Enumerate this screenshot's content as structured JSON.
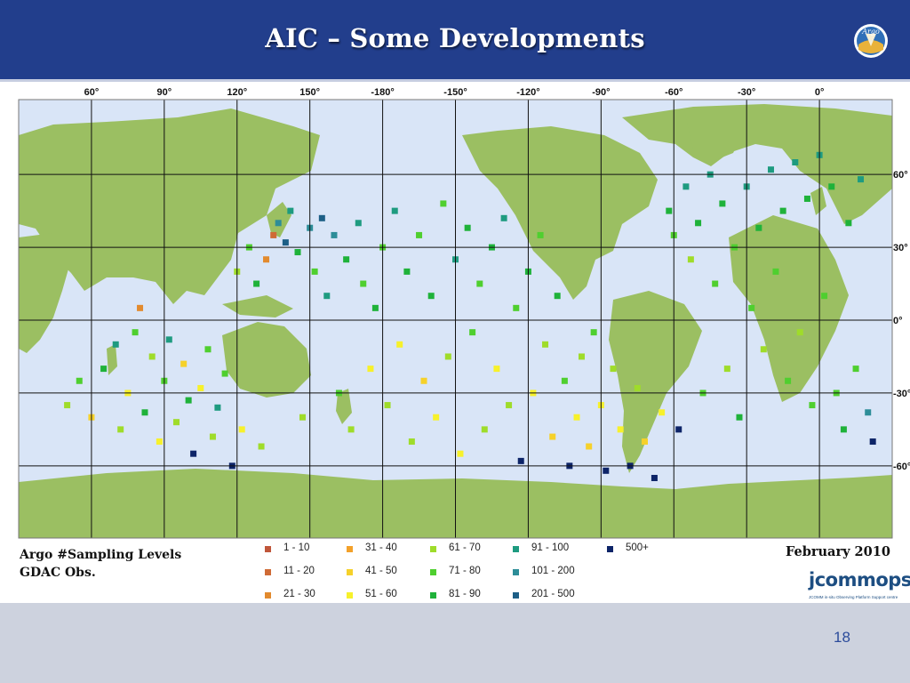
{
  "slide": {
    "title": "AIC – Some Developments",
    "page_number": "18",
    "logo_text": "Argo"
  },
  "map": {
    "lon_labels": [
      {
        "lon": 60,
        "label": "60°"
      },
      {
        "lon": 90,
        "label": "90°"
      },
      {
        "lon": 120,
        "label": "120°"
      },
      {
        "lon": 150,
        "label": "150°"
      },
      {
        "lon": 180,
        "label": "-180°"
      },
      {
        "lon": 210,
        "label": "-150°"
      },
      {
        "lon": 240,
        "label": "-120°"
      },
      {
        "lon": 270,
        "label": "-90°"
      },
      {
        "lon": 300,
        "label": "-60°"
      },
      {
        "lon": 330,
        "label": "-30°"
      },
      {
        "lon": 360,
        "label": "0°"
      }
    ],
    "lat_labels": [
      {
        "lat": 60,
        "label": "60°"
      },
      {
        "lat": 30,
        "label": "30°"
      },
      {
        "lat": 0,
        "label": "0°"
      },
      {
        "lat": -30,
        "label": "-30°"
      },
      {
        "lat": -60,
        "label": "-60°"
      }
    ],
    "colors": {
      "ocean": "#d9e5f7",
      "land": "#9bbf62",
      "grid": "#111111"
    }
  },
  "legend": {
    "title_line1": "Argo #Sampling Levels",
    "title_line2": "GDAC Obs.",
    "date": "February 2010",
    "bins": [
      {
        "label": "1 - 10",
        "color": "#c0563a"
      },
      {
        "label": "11 - 20",
        "color": "#cf6b36"
      },
      {
        "label": "21 - 30",
        "color": "#e28a2e"
      },
      {
        "label": "31 - 40",
        "color": "#f3a12a"
      },
      {
        "label": "41 - 50",
        "color": "#f6d12a"
      },
      {
        "label": "51 - 60",
        "color": "#f7f12b"
      },
      {
        "label": "61 - 70",
        "color": "#9fdc2a"
      },
      {
        "label": "71 - 80",
        "color": "#4fcf2f"
      },
      {
        "label": "81 - 90",
        "color": "#1fb23a"
      },
      {
        "label": "91 - 100",
        "color": "#1e9b80"
      },
      {
        "label": "101 - 200",
        "color": "#2d8d98"
      },
      {
        "label": "201 - 500",
        "color": "#1d5f86"
      },
      {
        "label": "500+",
        "color": "#0d2468"
      }
    ]
  },
  "branding": {
    "jcommops_name": "jcommops",
    "jcommops_sub": "JCOMM in-situ Observing Platform Support centre"
  },
  "chart_data": {
    "type": "scatter",
    "description_of_values": "float positions [lon, lat, bin index]",
    "points": [
      [
        50,
        -35,
        6
      ],
      [
        55,
        -25,
        7
      ],
      [
        60,
        -40,
        4
      ],
      [
        65,
        -20,
        8
      ],
      [
        70,
        -10,
        9
      ],
      [
        72,
        -45,
        6
      ],
      [
        75,
        -30,
        5
      ],
      [
        78,
        -5,
        7
      ],
      [
        80,
        5,
        2
      ],
      [
        82,
        -38,
        8
      ],
      [
        85,
        -15,
        6
      ],
      [
        88,
        -50,
        5
      ],
      [
        90,
        -25,
        7
      ],
      [
        92,
        -8,
        9
      ],
      [
        95,
        -42,
        6
      ],
      [
        98,
        -18,
        4
      ],
      [
        100,
        -33,
        8
      ],
      [
        102,
        -55,
        12
      ],
      [
        105,
        -28,
        5
      ],
      [
        108,
        -12,
        7
      ],
      [
        110,
        -48,
        6
      ],
      [
        112,
        -36,
        9
      ],
      [
        115,
        -22,
        7
      ],
      [
        118,
        -60,
        12
      ],
      [
        120,
        20,
        6
      ],
      [
        122,
        -45,
        5
      ],
      [
        125,
        30,
        7
      ],
      [
        128,
        15,
        8
      ],
      [
        130,
        -52,
        6
      ],
      [
        132,
        25,
        2
      ],
      [
        135,
        35,
        1
      ],
      [
        137,
        40,
        10
      ],
      [
        140,
        32,
        11
      ],
      [
        142,
        45,
        9
      ],
      [
        145,
        28,
        8
      ],
      [
        147,
        -40,
        6
      ],
      [
        150,
        38,
        10
      ],
      [
        152,
        20,
        7
      ],
      [
        155,
        42,
        11
      ],
      [
        157,
        10,
        9
      ],
      [
        160,
        35,
        10
      ],
      [
        162,
        -30,
        7
      ],
      [
        165,
        25,
        8
      ],
      [
        167,
        -45,
        6
      ],
      [
        170,
        40,
        9
      ],
      [
        172,
        15,
        7
      ],
      [
        175,
        -20,
        5
      ],
      [
        177,
        5,
        8
      ],
      [
        180,
        30,
        7
      ],
      [
        182,
        -35,
        6
      ],
      [
        185,
        45,
        9
      ],
      [
        187,
        -10,
        5
      ],
      [
        190,
        20,
        8
      ],
      [
        192,
        -50,
        6
      ],
      [
        195,
        35,
        7
      ],
      [
        197,
        -25,
        4
      ],
      [
        200,
        10,
        8
      ],
      [
        202,
        -40,
        5
      ],
      [
        205,
        48,
        7
      ],
      [
        207,
        -15,
        6
      ],
      [
        210,
        25,
        9
      ],
      [
        212,
        -55,
        5
      ],
      [
        215,
        38,
        8
      ],
      [
        217,
        -5,
        7
      ],
      [
        220,
        15,
        7
      ],
      [
        222,
        -45,
        6
      ],
      [
        225,
        30,
        8
      ],
      [
        227,
        -20,
        5
      ],
      [
        230,
        42,
        9
      ],
      [
        232,
        -35,
        6
      ],
      [
        235,
        5,
        7
      ],
      [
        237,
        -58,
        12
      ],
      [
        240,
        20,
        8
      ],
      [
        242,
        -30,
        5
      ],
      [
        245,
        35,
        7
      ],
      [
        247,
        -10,
        6
      ],
      [
        250,
        -48,
        4
      ],
      [
        252,
        10,
        8
      ],
      [
        255,
        -25,
        7
      ],
      [
        257,
        -60,
        12
      ],
      [
        260,
        -40,
        5
      ],
      [
        262,
        -15,
        6
      ],
      [
        265,
        -52,
        4
      ],
      [
        267,
        -5,
        7
      ],
      [
        270,
        -35,
        5
      ],
      [
        272,
        -62,
        12
      ],
      [
        275,
        -20,
        6
      ],
      [
        278,
        -45,
        5
      ],
      [
        282,
        -60,
        12
      ],
      [
        285,
        -28,
        6
      ],
      [
        288,
        -50,
        4
      ],
      [
        292,
        -65,
        12
      ],
      [
        295,
        -38,
        5
      ],
      [
        298,
        45,
        8
      ],
      [
        300,
        35,
        7
      ],
      [
        302,
        -45,
        12
      ],
      [
        305,
        55,
        9
      ],
      [
        307,
        25,
        6
      ],
      [
        310,
        40,
        8
      ],
      [
        312,
        -30,
        7
      ],
      [
        315,
        60,
        9
      ],
      [
        317,
        15,
        7
      ],
      [
        320,
        48,
        8
      ],
      [
        322,
        -20,
        6
      ],
      [
        325,
        30,
        7
      ],
      [
        327,
        -40,
        8
      ],
      [
        330,
        55,
        9
      ],
      [
        332,
        5,
        7
      ],
      [
        335,
        38,
        8
      ],
      [
        337,
        -12,
        6
      ],
      [
        340,
        62,
        9
      ],
      [
        342,
        20,
        7
      ],
      [
        345,
        45,
        8
      ],
      [
        347,
        -25,
        7
      ],
      [
        350,
        65,
        9
      ],
      [
        352,
        -5,
        6
      ],
      [
        355,
        50,
        8
      ],
      [
        357,
        -35,
        7
      ],
      [
        360,
        68,
        9
      ],
      [
        362,
        10,
        7
      ],
      [
        365,
        55,
        8
      ],
      [
        367,
        -30,
        7
      ],
      [
        370,
        -45,
        8
      ],
      [
        372,
        40,
        8
      ],
      [
        375,
        -20,
        7
      ],
      [
        377,
        58,
        9
      ],
      [
        380,
        -38,
        10
      ],
      [
        382,
        -50,
        12
      ]
    ]
  }
}
